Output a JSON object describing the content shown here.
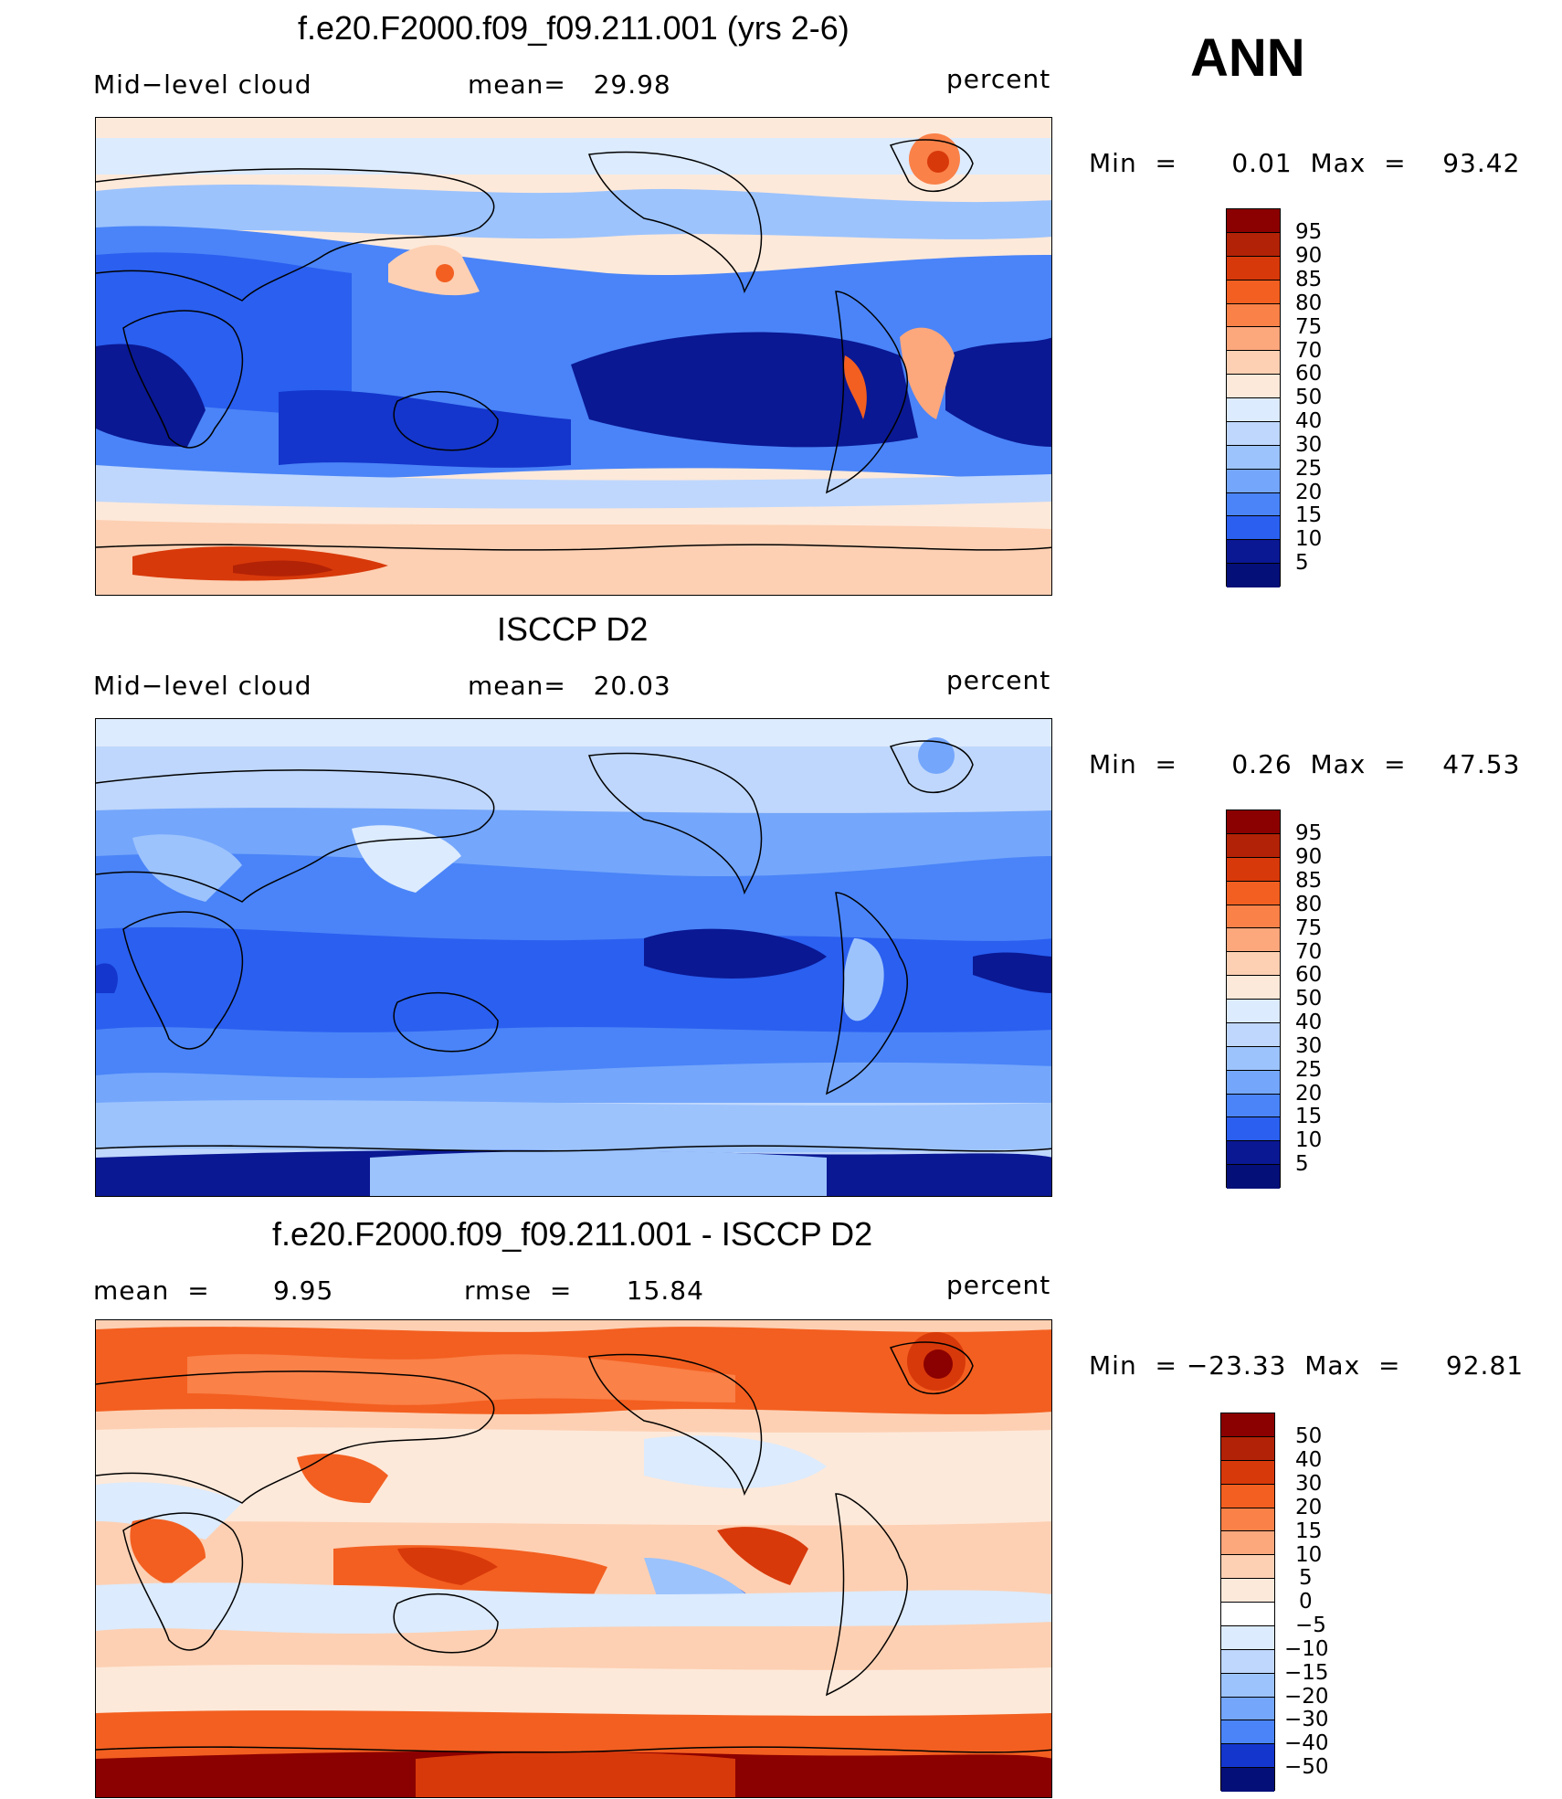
{
  "page": {
    "season_label": "ANN"
  },
  "colors": {
    "pos_scale": [
      "#8b0000",
      "#b22206",
      "#d8390a",
      "#f35f20",
      "#fa8148",
      "#fda77c",
      "#fdd0b3",
      "#fde9da",
      "#dcebfd",
      "#bfd7fc",
      "#9cc3fc",
      "#74a6fb",
      "#4a84f8",
      "#2a5ff0",
      "#1436cc",
      "#0a1893",
      "#040f78"
    ],
    "diff_scale": [
      "#8b0000",
      "#b22206",
      "#d8390a",
      "#f35f20",
      "#fa8148",
      "#fda77c",
      "#fdd0b3",
      "#fde9da",
      "#ffffff",
      "#dcebfd",
      "#bfd7fc",
      "#9cc3fc",
      "#74a6fb",
      "#4a84f8",
      "#2a5ff0",
      "#1436cc",
      "#0a1893",
      "#040f78"
    ],
    "land_outline": "#000000"
  },
  "panels": [
    {
      "id": "model",
      "title": "f.e20.F2000.f09_f09.211.001 (yrs 2-6)",
      "left_label": "Mid−level cloud",
      "mid_label": "mean=   29.98",
      "right_label": "percent",
      "min_text": "Min  =      0.01  Max  =    93.42",
      "legend_levels": [
        "95",
        "90",
        "85",
        "80",
        "75",
        "70",
        "60",
        "50",
        "40",
        "30",
        "25",
        "20",
        "15",
        "10",
        "5"
      ],
      "legend_colors": [
        "#8b0000",
        "#b22206",
        "#d8390a",
        "#f35f20",
        "#fa8148",
        "#fda77c",
        "#fdd0b3",
        "#fde9da",
        "#dcebfd",
        "#bfd7fc",
        "#9cc3fc",
        "#74a6fb",
        "#4a84f8",
        "#2a5ff0",
        "#0a1893",
        "#040f78"
      ]
    },
    {
      "id": "obs",
      "title": "ISCCP D2",
      "left_label": "Mid−level cloud",
      "mid_label": "mean=   20.03",
      "right_label": "percent",
      "min_text": "Min  =      0.26  Max  =    47.53",
      "legend_levels": [
        "95",
        "90",
        "85",
        "80",
        "75",
        "70",
        "60",
        "50",
        "40",
        "30",
        "25",
        "20",
        "15",
        "10",
        "5"
      ],
      "legend_colors": [
        "#8b0000",
        "#b22206",
        "#d8390a",
        "#f35f20",
        "#fa8148",
        "#fda77c",
        "#fdd0b3",
        "#fde9da",
        "#dcebfd",
        "#bfd7fc",
        "#9cc3fc",
        "#74a6fb",
        "#4a84f8",
        "#2a5ff0",
        "#0a1893",
        "#040f78"
      ]
    },
    {
      "id": "diff",
      "title": "f.e20.F2000.f09_f09.211.001 - ISCCP D2",
      "left_label": "mean  =       9.95",
      "mid_label": "rmse  =      15.84",
      "right_label": "percent",
      "min_text": "Min  = −23.33  Max  =     92.81",
      "legend_levels": [
        "50",
        "40",
        "30",
        "20",
        "15",
        "10",
        "5",
        "0",
        "−5",
        "−10",
        "−15",
        "−20",
        "−30",
        "−40",
        "−50"
      ],
      "legend_colors": [
        "#8b0000",
        "#b22206",
        "#d8390a",
        "#f35f20",
        "#fa8148",
        "#fda77c",
        "#fdd0b3",
        "#fde9da",
        "#ffffff",
        "#dcebfd",
        "#bfd7fc",
        "#9cc3fc",
        "#74a6fb",
        "#4a84f8",
        "#1436cc",
        "#040f78"
      ]
    }
  ]
}
